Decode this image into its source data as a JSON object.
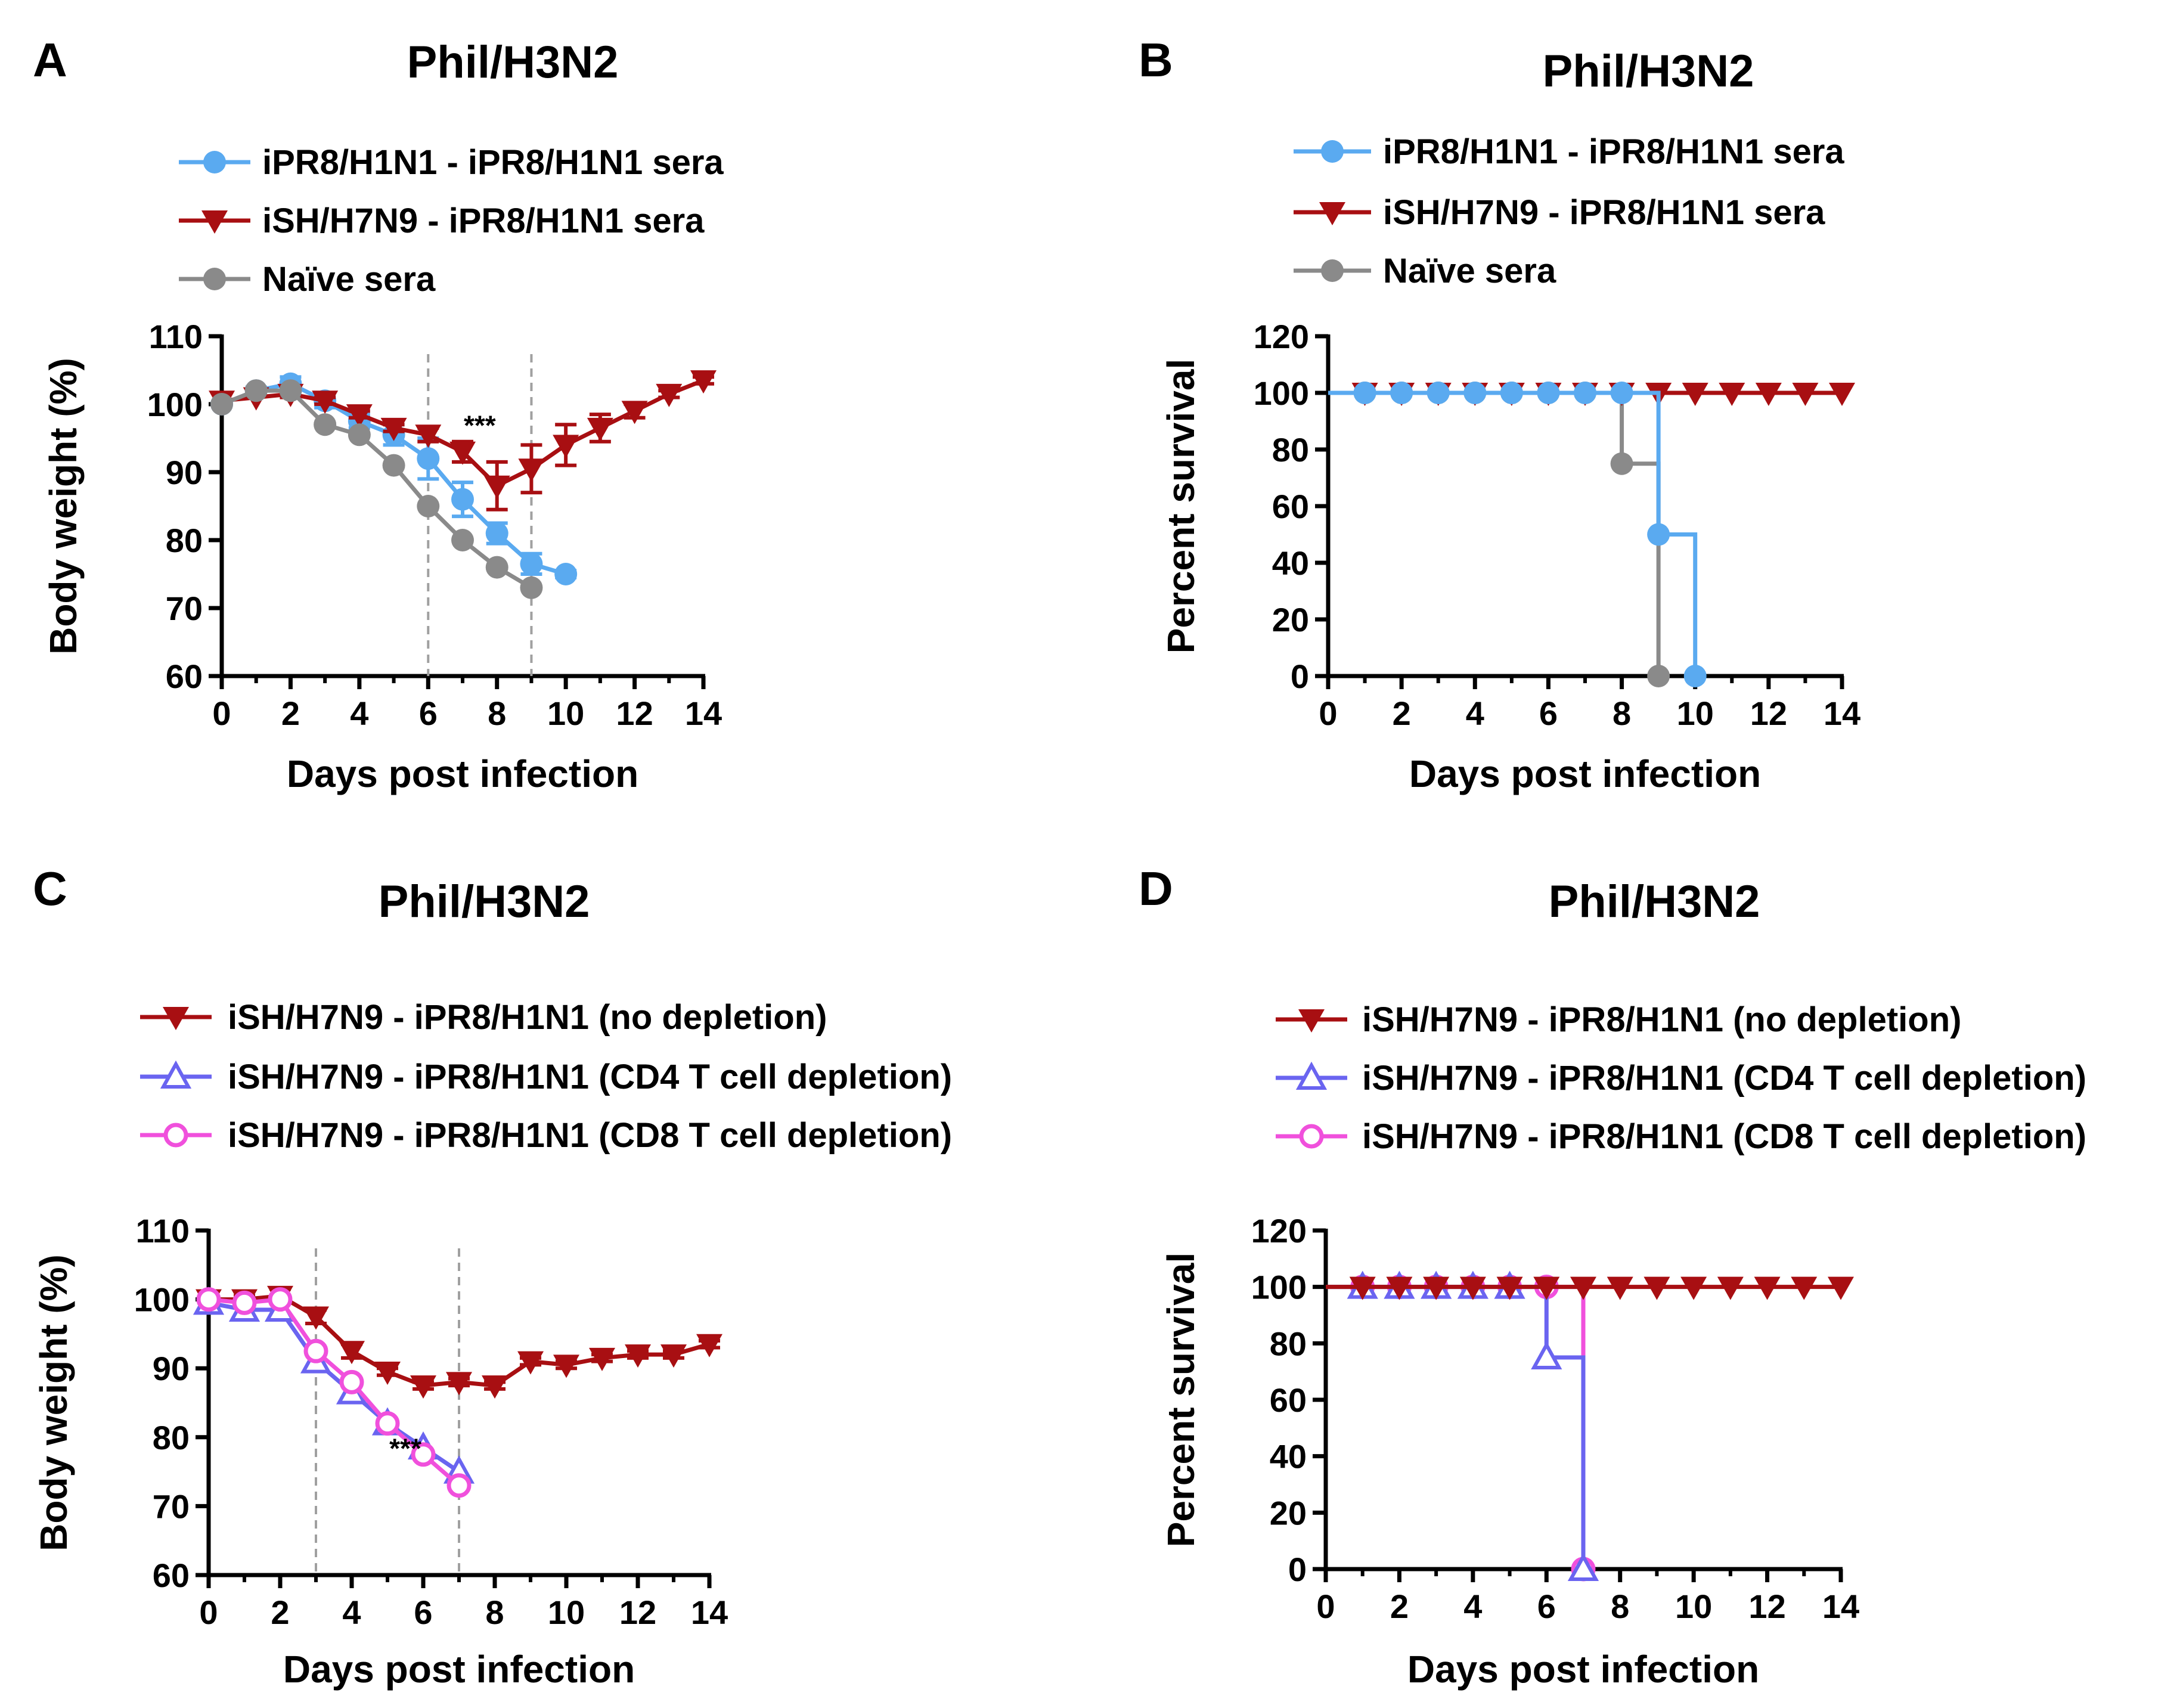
{
  "colors": {
    "blue": "#5aaaf0",
    "red": "#a80f12",
    "gray": "#8a8a8a",
    "purple": "#6a64f0",
    "magenta": "#f050dc",
    "dashed": "#a0a0a0"
  },
  "chart_data": [
    {
      "id": "A",
      "panel_label": "A",
      "type": "line",
      "title": "Phil/H3N2",
      "xlabel": "Days post infection",
      "ylabel": "Body weight (%)",
      "xlim": [
        0,
        14
      ],
      "ylim": [
        60,
        110
      ],
      "xticks": [
        "0",
        "2",
        "4",
        "6",
        "8",
        "10",
        "12",
        "14"
      ],
      "yticks": [
        "60",
        "70",
        "80",
        "90",
        "100",
        "110"
      ],
      "vlines": [
        6,
        9
      ],
      "annotation": {
        "text": "***",
        "x": 7.5,
        "y": 95.5
      },
      "series": [
        {
          "name": "iPR8/H1N1 - iPR8/H1N1 sera",
          "color": "blue",
          "marker": "circle",
          "x": [
            0,
            1,
            2,
            3,
            4,
            5,
            6,
            7,
            8,
            9,
            10
          ],
          "y": [
            100,
            102,
            103,
            100.5,
            97.5,
            95.5,
            92,
            86,
            81,
            76.5,
            75
          ],
          "err": [
            0,
            0.5,
            1,
            1,
            1,
            1.5,
            3,
            2.5,
            1.5,
            1.5,
            0.5
          ]
        },
        {
          "name": "iSH/H7N9 - iPR8/H1N1 sera",
          "color": "red",
          "marker": "triangle-down",
          "x": [
            0,
            1,
            2,
            3,
            4,
            5,
            6,
            7,
            8,
            9,
            10,
            11,
            12,
            13,
            14
          ],
          "y": [
            100.5,
            101,
            101.5,
            100.5,
            98.5,
            96.5,
            95.5,
            93,
            88,
            90.5,
            94,
            96.5,
            99,
            101.5,
            103.5
          ],
          "err": [
            0,
            0,
            0.5,
            0.5,
            0.5,
            0.5,
            1,
            1.5,
            3.5,
            3.5,
            3,
            2,
            1,
            0.5,
            0.5
          ]
        },
        {
          "name": "Naïve sera",
          "color": "gray",
          "marker": "circle",
          "x": [
            0,
            1,
            2,
            3,
            4,
            5,
            6,
            7,
            8,
            9
          ],
          "y": [
            100,
            102,
            102,
            97,
            95.5,
            91,
            85,
            80,
            76,
            73
          ],
          "err": [
            0,
            0,
            0,
            0,
            0,
            0,
            0,
            0,
            0,
            0
          ]
        }
      ]
    },
    {
      "id": "B",
      "panel_label": "B",
      "type": "line",
      "step": true,
      "title": "Phil/H3N2",
      "xlabel": "Days post infection",
      "ylabel": "Percent survival",
      "xlim": [
        0,
        14
      ],
      "ylim": [
        0,
        120
      ],
      "xticks": [
        "0",
        "2",
        "4",
        "6",
        "8",
        "10",
        "12",
        "14"
      ],
      "yticks": [
        "0",
        "20",
        "40",
        "60",
        "80",
        "100",
        "120"
      ],
      "series": [
        {
          "name": "iPR8/H1N1 - iPR8/H1N1 sera",
          "color": "blue",
          "marker": "circle",
          "x": [
            1,
            2,
            3,
            4,
            5,
            6,
            7,
            8,
            9,
            10
          ],
          "y": [
            100,
            100,
            100,
            100,
            100,
            100,
            100,
            100,
            50,
            0
          ]
        },
        {
          "name": "iSH/H7N9 - iPR8/H1N1 sera",
          "color": "red",
          "marker": "triangle-down",
          "x": [
            1,
            2,
            3,
            4,
            5,
            6,
            7,
            8,
            9,
            10,
            11,
            12,
            13,
            14
          ],
          "y": [
            100,
            100,
            100,
            100,
            100,
            100,
            100,
            100,
            100,
            100,
            100,
            100,
            100,
            100
          ]
        },
        {
          "name": "Naïve sera",
          "color": "gray",
          "marker": "circle",
          "x": [
            1,
            2,
            3,
            4,
            5,
            6,
            7,
            8,
            9
          ],
          "y": [
            100,
            100,
            100,
            100,
            100,
            100,
            100,
            75,
            0
          ]
        }
      ]
    },
    {
      "id": "C",
      "panel_label": "C",
      "type": "line",
      "title": "Phil/H3N2",
      "xlabel": "Days post infection",
      "ylabel": "Body weight (%)",
      "xlim": [
        0,
        14
      ],
      "ylim": [
        60,
        110
      ],
      "xticks": [
        "0",
        "2",
        "4",
        "6",
        "8",
        "10",
        "12",
        "14"
      ],
      "yticks": [
        "60",
        "70",
        "80",
        "90",
        "100",
        "110"
      ],
      "vlines": [
        3,
        7
      ],
      "annotation": {
        "text": "***",
        "x": 5.5,
        "y": 77
      },
      "series": [
        {
          "name": "iSH/H7N9 - iPR8/H1N1 (no depletion)",
          "color": "red",
          "marker": "triangle-down",
          "x": [
            0,
            1,
            2,
            3,
            4,
            5,
            6,
            7,
            8,
            9,
            10,
            11,
            12,
            13,
            14
          ],
          "y": [
            100,
            100,
            100.5,
            97.5,
            92.5,
            89.5,
            87.5,
            88,
            87.5,
            91,
            90.5,
            91.5,
            92,
            92,
            93.5
          ],
          "err": [
            0.5,
            0.5,
            1,
            1,
            1,
            0.5,
            0.5,
            0.5,
            0.5,
            0.5,
            0.5,
            0.5,
            0.5,
            0.5,
            0.5
          ]
        },
        {
          "name": "iSH/H7N9 - iPR8/H1N1 (CD4 T cell depletion)",
          "color": "purple",
          "marker": "triangle-up",
          "x": [
            0,
            1,
            2,
            3,
            4,
            5,
            6,
            7
          ],
          "y": [
            99.5,
            98.5,
            98.5,
            91,
            86.5,
            82,
            78.5,
            75
          ]
        },
        {
          "name": "iSH/H7N9 - iPR8/H1N1 (CD8 T cell depletion)",
          "color": "magenta",
          "marker": "circle-open",
          "x": [
            0,
            1,
            2,
            3,
            4,
            5,
            6,
            7
          ],
          "y": [
            100,
            99.5,
            100,
            92.5,
            88,
            82,
            77.5,
            73
          ]
        }
      ]
    },
    {
      "id": "D",
      "panel_label": "D",
      "type": "line",
      "step": true,
      "title": "Phil/H3N2",
      "xlabel": "Days post infection",
      "ylabel": "Percent survival",
      "xlim": [
        0,
        14
      ],
      "ylim": [
        0,
        120
      ],
      "xticks": [
        "0",
        "2",
        "4",
        "6",
        "8",
        "10",
        "12",
        "14"
      ],
      "yticks": [
        "0",
        "20",
        "40",
        "60",
        "80",
        "100",
        "120"
      ],
      "series": [
        {
          "name": "iSH/H7N9 - iPR8/H1N1 (no depletion)",
          "color": "red",
          "marker": "triangle-down",
          "x": [
            1,
            2,
            3,
            4,
            5,
            6,
            7,
            8,
            9,
            10,
            11,
            12,
            13,
            14
          ],
          "y": [
            100,
            100,
            100,
            100,
            100,
            100,
            100,
            100,
            100,
            100,
            100,
            100,
            100,
            100
          ]
        },
        {
          "name": "iSH/H7N9 - iPR8/H1N1 (CD4 T cell depletion)",
          "color": "purple",
          "marker": "triangle-up",
          "x": [
            1,
            2,
            3,
            4,
            5,
            6,
            7
          ],
          "y": [
            100,
            100,
            100,
            100,
            100,
            75,
            0
          ]
        },
        {
          "name": "iSH/H7N9 - iPR8/H1N1 (CD8 T cell depletion)",
          "color": "magenta",
          "marker": "circle-open",
          "x": [
            1,
            2,
            3,
            4,
            5,
            6,
            7
          ],
          "y": [
            100,
            100,
            100,
            100,
            100,
            100,
            0
          ]
        }
      ]
    }
  ]
}
